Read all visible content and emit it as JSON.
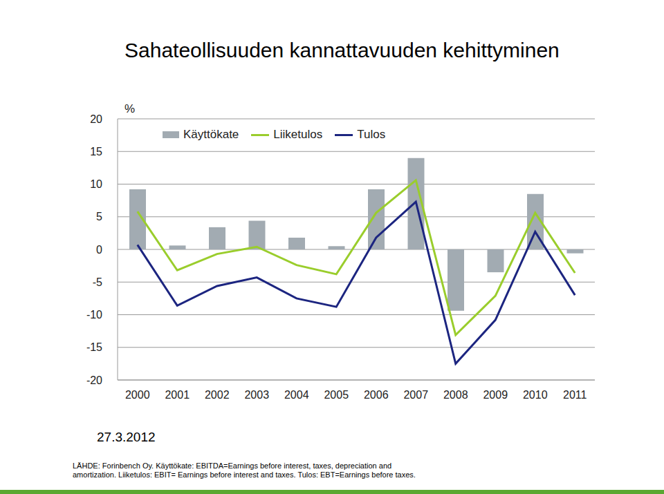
{
  "chart_data": {
    "type": "bar",
    "title": "Sahateollisuuden kannattavuuden kehittyminen",
    "y_label": "%",
    "categories": [
      "2000",
      "2001",
      "2002",
      "2003",
      "2004",
      "2005",
      "2006",
      "2007",
      "2008",
      "2009",
      "2010",
      "2011"
    ],
    "series": [
      {
        "name": "Käyttökate",
        "type": "bar",
        "color": "#a2abb2",
        "values": [
          9.2,
          0.6,
          3.4,
          4.4,
          1.8,
          0.5,
          9.2,
          14.0,
          -9.4,
          -3.5,
          8.5,
          -0.6
        ]
      },
      {
        "name": "Liiketulos",
        "type": "line",
        "color": "#9acd2c",
        "values": [
          5.8,
          -3.2,
          -0.7,
          0.4,
          -2.4,
          -3.8,
          5.6,
          10.6,
          -13.1,
          -7.1,
          5.6,
          -3.6
        ]
      },
      {
        "name": "Tulos",
        "type": "line",
        "color": "#1c2580",
        "values": [
          0.7,
          -8.6,
          -5.6,
          -4.3,
          -7.5,
          -8.8,
          1.8,
          7.3,
          -17.5,
          -10.8,
          2.7,
          -7.0
        ]
      }
    ],
    "ylim": [
      -20,
      20
    ],
    "yticks": [
      -20,
      -15,
      -10,
      -5,
      0,
      5,
      10,
      15,
      20
    ],
    "grid": true,
    "annotations": [
      "27.3.2012",
      "LÄHDE: Forinbench Oy. Käyttökate: EBITDA=Earnings before interest, taxes, depreciation and amortization. Liiketulos: EBIT= Earnings before interest and taxes. Tulos: EBT=Earnings before taxes."
    ]
  }
}
